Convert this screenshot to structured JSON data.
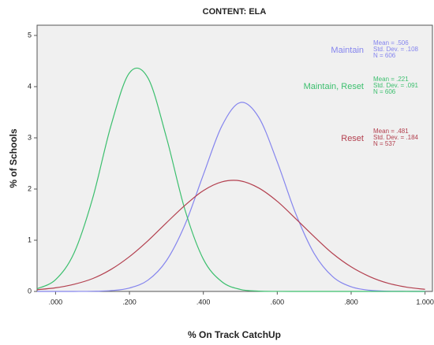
{
  "chart_data": {
    "type": "line",
    "title": "CONTENT: ELA",
    "x_label": "% On Track CatchUp",
    "y_label": "% of Schools",
    "x": [
      -0.05,
      0,
      0.05,
      0.1,
      0.15,
      0.2,
      0.25,
      0.3,
      0.35,
      0.4,
      0.45,
      0.5,
      0.55,
      0.6,
      0.65,
      0.7,
      0.75,
      0.8,
      0.85,
      0.9,
      0.95,
      1.0
    ],
    "series": [
      {
        "name": "Maintain",
        "color": "#8585ee",
        "stats": [
          "Mean = .506",
          "Std. Dev. = .108",
          "N = 606"
        ],
        "values": [
          0,
          0,
          0.0005,
          0.003,
          0.016,
          0.067,
          0.22,
          0.6,
          1.3,
          2.28,
          3.23,
          3.69,
          3.4,
          2.53,
          1.52,
          0.74,
          0.29,
          0.091,
          0.023,
          0.005,
          0.001,
          0
        ]
      },
      {
        "name": "Maintain, Reset",
        "color": "#3cbf6e",
        "stats": [
          "Mean = .221",
          "Std. Dev. = .091",
          "N = 606"
        ],
        "values": [
          0.052,
          0.23,
          0.75,
          1.81,
          3.24,
          4.27,
          4.17,
          3.01,
          1.6,
          0.63,
          0.19,
          0.04,
          0.006,
          0.001,
          0,
          0,
          0,
          0,
          0,
          0,
          0,
          0
        ]
      },
      {
        "name": "Reset",
        "color": "#b3404f",
        "stats": [
          "Mean = .481",
          "Std. Dev. = .184",
          "N = 537"
        ],
        "values": [
          0.034,
          0.071,
          0.14,
          0.25,
          0.43,
          0.68,
          0.99,
          1.34,
          1.68,
          1.97,
          2.14,
          2.16,
          2.02,
          1.76,
          1.42,
          1.07,
          0.74,
          0.48,
          0.29,
          0.16,
          0.084,
          0.041
        ]
      }
    ],
    "xlim": [
      -0.05,
      1.02
    ],
    "ylim": [
      0,
      5.2
    ],
    "xticks": [
      {
        "value": 0,
        "label": ".000"
      },
      {
        "value": 0.2,
        "label": ".200"
      },
      {
        "value": 0.4,
        "label": ".400"
      },
      {
        "value": 0.6,
        "label": ".600"
      },
      {
        "value": 0.8,
        "label": ".800"
      },
      {
        "value": 1.0,
        "label": "1.000"
      }
    ],
    "yticks": [
      0,
      1,
      2,
      3,
      4,
      5
    ]
  }
}
